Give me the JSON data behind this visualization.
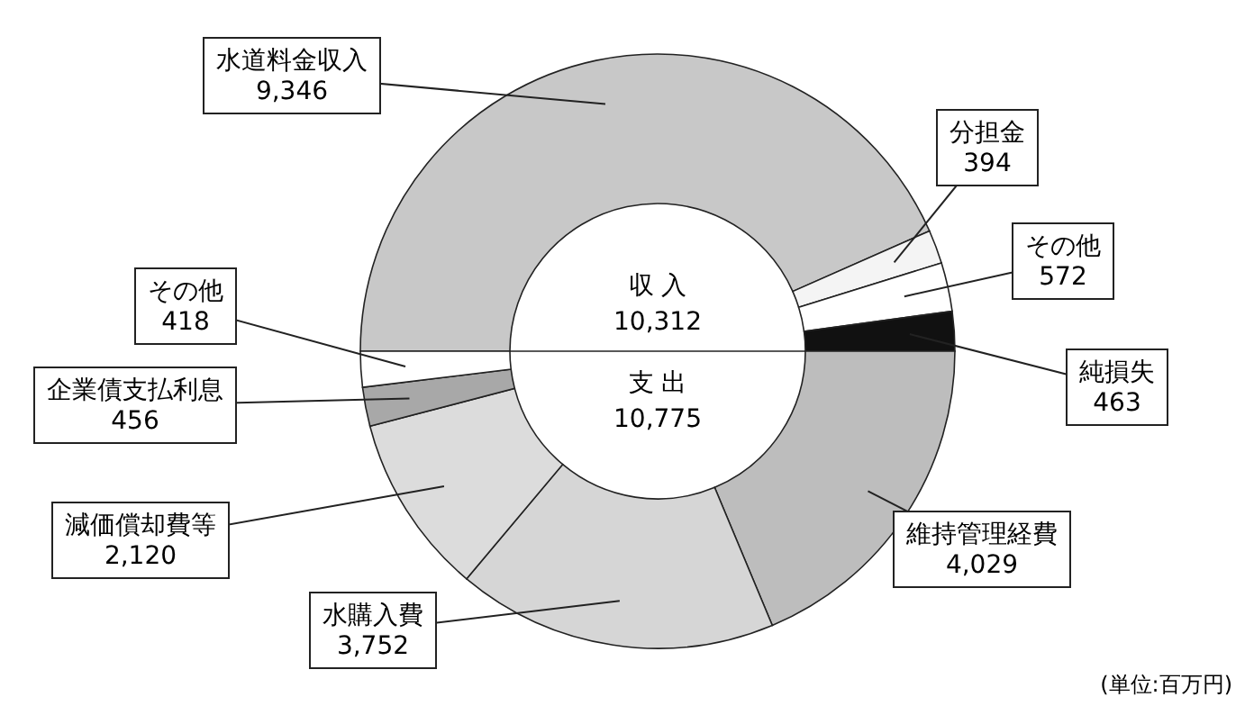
{
  "chart_data": {
    "type": "donut",
    "categories": [
      "水道料金収入",
      "分担金",
      "その他",
      "純損失",
      "維持管理経費",
      "水購入費",
      "減価償却費等",
      "企業債支払利息",
      "その他"
    ],
    "values": [
      9346,
      394,
      572,
      463,
      4029,
      3752,
      2120,
      456,
      418
    ],
    "value_labels": [
      "9,346",
      "394",
      "572",
      "463",
      "4,029",
      "3,752",
      "2,120",
      "456",
      "418"
    ],
    "colors": [
      "#c8c8c8",
      "#f4f4f4",
      "#ffffff",
      "#111111",
      "#bdbdbd",
      "#d6d6d6",
      "#dcdcdc",
      "#a8a8a8",
      "#ffffff"
    ],
    "annotations": [
      "収 入",
      "10,312",
      "支 出",
      "10,775",
      "(単位:百万円)"
    ]
  }
}
